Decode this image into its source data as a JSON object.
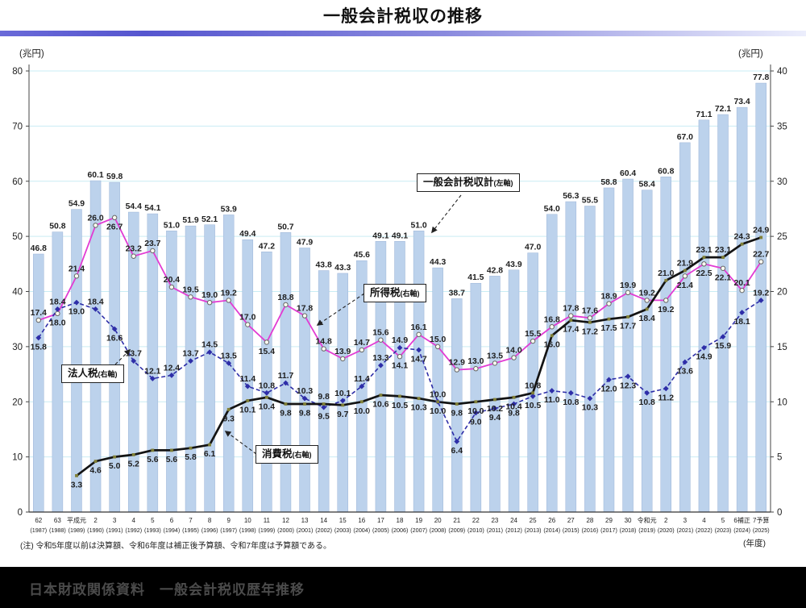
{
  "page": {
    "title": "一般会計税収の推移",
    "note": "(注) 令和5年度以前は決算額、令和6年度は補正後予算額、令和7年度は予算額である。",
    "x_axis_unit": "(年度)",
    "footer_watermark": "日本財政関係資料　一般会計税収歴年推移"
  },
  "chart_data": {
    "type": "bar",
    "subtype": "bar+line combo, dual axis",
    "title": "一般会計税収の推移",
    "unit_left": "(兆円)",
    "unit_right": "(兆円)",
    "left_axis": {
      "min": 0,
      "max": 80,
      "step": 10
    },
    "right_axis": {
      "min": 0,
      "max": 40,
      "step": 5
    },
    "grid": "horizontal light-cyan lines",
    "categories_era": [
      "62",
      "63",
      "平成元",
      "2",
      "3",
      "4",
      "5",
      "6",
      "7",
      "8",
      "9",
      "10",
      "11",
      "12",
      "13",
      "14",
      "15",
      "16",
      "17",
      "18",
      "19",
      "20",
      "21",
      "22",
      "23",
      "24",
      "25",
      "26",
      "27",
      "28",
      "29",
      "30",
      "令和元",
      "2",
      "3",
      "4",
      "5",
      "6補正",
      "7予算"
    ],
    "categories_year": [
      "(1987)",
      "(1988)",
      "(1989)",
      "(1990)",
      "(1991)",
      "(1992)",
      "(1993)",
      "(1994)",
      "(1995)",
      "(1996)",
      "(1997)",
      "(1998)",
      "(1999)",
      "(2000)",
      "(2001)",
      "(2002)",
      "(2003)",
      "(2004)",
      "(2005)",
      "(2006)",
      "(2007)",
      "(2008)",
      "(2009)",
      "(2010)",
      "(2011)",
      "(2012)",
      "(2013)",
      "(2014)",
      "(2015)",
      "(2016)",
      "(2017)",
      "(2018)",
      "(2019)",
      "(2020)",
      "(2021)",
      "(2022)",
      "(2023)",
      "(2024)",
      "(2025)"
    ],
    "bars": {
      "name": "一般会計税収計",
      "axis": "left",
      "values": [
        46.8,
        50.8,
        54.9,
        60.1,
        59.8,
        54.4,
        54.1,
        51.0,
        51.9,
        52.1,
        53.9,
        49.4,
        47.2,
        50.7,
        47.9,
        43.8,
        43.3,
        45.6,
        49.1,
        49.1,
        51.0,
        44.3,
        38.7,
        41.5,
        42.8,
        43.9,
        47.0,
        54.0,
        56.3,
        55.5,
        58.8,
        60.4,
        58.4,
        60.8,
        67.0,
        71.1,
        72.1,
        73.4,
        77.8
      ]
    },
    "series": [
      {
        "name": "所得税",
        "axis": "right",
        "style": "solid",
        "marker": "circle",
        "values": [
          17.4,
          18.0,
          21.4,
          26.0,
          26.7,
          23.2,
          23.7,
          20.4,
          19.5,
          19.0,
          19.2,
          17.0,
          15.4,
          18.8,
          17.8,
          14.8,
          13.9,
          14.7,
          15.6,
          14.1,
          16.1,
          15.0,
          12.9,
          13.0,
          13.5,
          14.0,
          15.5,
          16.8,
          17.8,
          17.6,
          18.9,
          19.9,
          19.2,
          19.2,
          21.4,
          22.5,
          22.1,
          20.1,
          22.7
        ],
        "label_pos": [
          "a",
          "b",
          "a",
          "a",
          "b",
          "a",
          "a",
          "a",
          "a",
          "a",
          "a",
          "a",
          "b",
          "a",
          "a",
          "a",
          "a",
          "a",
          "a",
          "b",
          "a",
          "a",
          "a",
          "a",
          "a",
          "a",
          "a",
          "a",
          "a",
          "a",
          "a",
          "a",
          "a",
          "b",
          "b",
          "b",
          "b",
          "a",
          "a"
        ]
      },
      {
        "name": "法人税",
        "axis": "right",
        "style": "dashed",
        "marker": "diamond",
        "values": [
          15.8,
          18.4,
          19.0,
          18.4,
          16.6,
          13.7,
          12.1,
          12.4,
          13.7,
          14.5,
          13.5,
          11.4,
          10.8,
          11.7,
          10.3,
          9.5,
          10.1,
          11.4,
          13.3,
          14.9,
          14.7,
          10.0,
          6.4,
          9.0,
          9.4,
          9.8,
          10.5,
          11.0,
          10.8,
          10.3,
          12.0,
          12.3,
          10.8,
          11.2,
          13.6,
          14.9,
          15.9,
          18.1,
          19.2
        ],
        "label_pos": [
          "b",
          "a",
          "b",
          "a",
          "b",
          "a",
          "a",
          "a",
          "a",
          "a",
          "a",
          "a",
          "a",
          "a",
          "a",
          "b",
          "a",
          "a",
          "a",
          "a",
          "b",
          "a",
          "b",
          "b",
          "b",
          "b",
          "b",
          "b",
          "b",
          "b",
          "b",
          "b",
          "b",
          "b",
          "b",
          "b",
          "b",
          "b",
          "a"
        ]
      },
      {
        "name": "消費税",
        "axis": "right",
        "style": "solid-thick",
        "marker": "square",
        "values": [
          null,
          null,
          3.3,
          4.6,
          5.0,
          5.2,
          5.6,
          5.6,
          5.8,
          6.1,
          9.3,
          10.1,
          10.4,
          9.8,
          9.8,
          9.8,
          9.7,
          10.0,
          10.6,
          10.5,
          10.3,
          10.0,
          9.8,
          10.0,
          10.2,
          10.4,
          10.8,
          16.0,
          17.4,
          17.2,
          17.5,
          17.7,
          18.4,
          21.0,
          21.9,
          23.1,
          23.1,
          24.3,
          24.9
        ],
        "label_pos": [
          null,
          null,
          "b",
          "b",
          "b",
          "b",
          "b",
          "b",
          "b",
          "b",
          "b",
          "b",
          "b",
          "b",
          "b",
          "a",
          "b",
          "b",
          "b",
          "b",
          "b",
          "b",
          "b",
          "b",
          "b",
          "b",
          "a",
          "b",
          "b",
          "b",
          "b",
          "b",
          "b",
          "a",
          "a",
          "a",
          "a",
          "a",
          "a"
        ]
      }
    ],
    "callouts": [
      {
        "label": "一般会計税収計",
        "suffix": "(左軸)"
      },
      {
        "label": "所得税",
        "suffix": "(右軸)"
      },
      {
        "label": "法人税",
        "suffix": "(右軸)"
      },
      {
        "label": "消費税",
        "suffix": "(右軸)"
      }
    ],
    "colors": {
      "bar": "#bcd2ec",
      "bar_stroke": "#9db5d8",
      "income_tax": "#e23bd3",
      "corporate_tax": "#2e2ea8",
      "consumption_tax": "#141414",
      "grid": "#c9ecf4",
      "marker_olive": "#808038",
      "label": "#1f1f1f",
      "axis": "#333333"
    }
  }
}
